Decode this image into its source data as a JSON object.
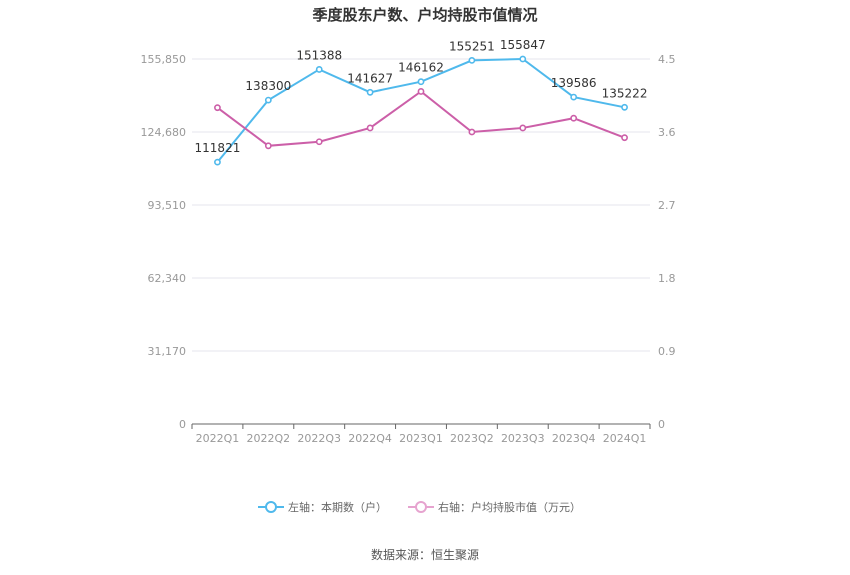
{
  "title": "季度股东户数、户均持股市值情况",
  "source": "数据来源：恒生聚源",
  "legend": {
    "left": "左轴：本期数（户）",
    "right": "右轴：户均持股市值（万元）"
  },
  "colors": {
    "left_series": "#4fb9ec",
    "right_series": "#cc5fa8",
    "grid": "#e6e6ee",
    "axis": "#999999"
  },
  "chart_data": {
    "type": "line",
    "categories": [
      "2022Q1",
      "2022Q2",
      "2022Q3",
      "2022Q4",
      "2023Q1",
      "2023Q2",
      "2023Q3",
      "2023Q4",
      "2024Q1"
    ],
    "left_axis": {
      "ticks": [
        "0",
        "31,170",
        "62,340",
        "93,510",
        "124,680",
        "155,850"
      ],
      "min": 0,
      "max": 155850
    },
    "right_axis": {
      "ticks": [
        "0",
        "0.9",
        "1.8",
        "2.7",
        "3.6",
        "4.5"
      ],
      "min": 0,
      "max": 4.5
    },
    "grid": true,
    "legend_position": "bottom",
    "series": [
      {
        "name": "左轴：本期数（户）",
        "axis": "left",
        "values": [
          111821,
          138300,
          151388,
          141627,
          146162,
          155251,
          155847,
          139586,
          135222
        ],
        "labels": [
          "111821",
          "138300",
          "151388",
          "141627",
          "146162",
          "155251",
          "155847",
          "139586",
          "135222"
        ]
      },
      {
        "name": "右轴：户均持股市值（万元）",
        "axis": "right",
        "values": [
          3.9,
          3.43,
          3.48,
          3.65,
          4.1,
          3.6,
          3.65,
          3.77,
          3.53
        ]
      }
    ]
  }
}
